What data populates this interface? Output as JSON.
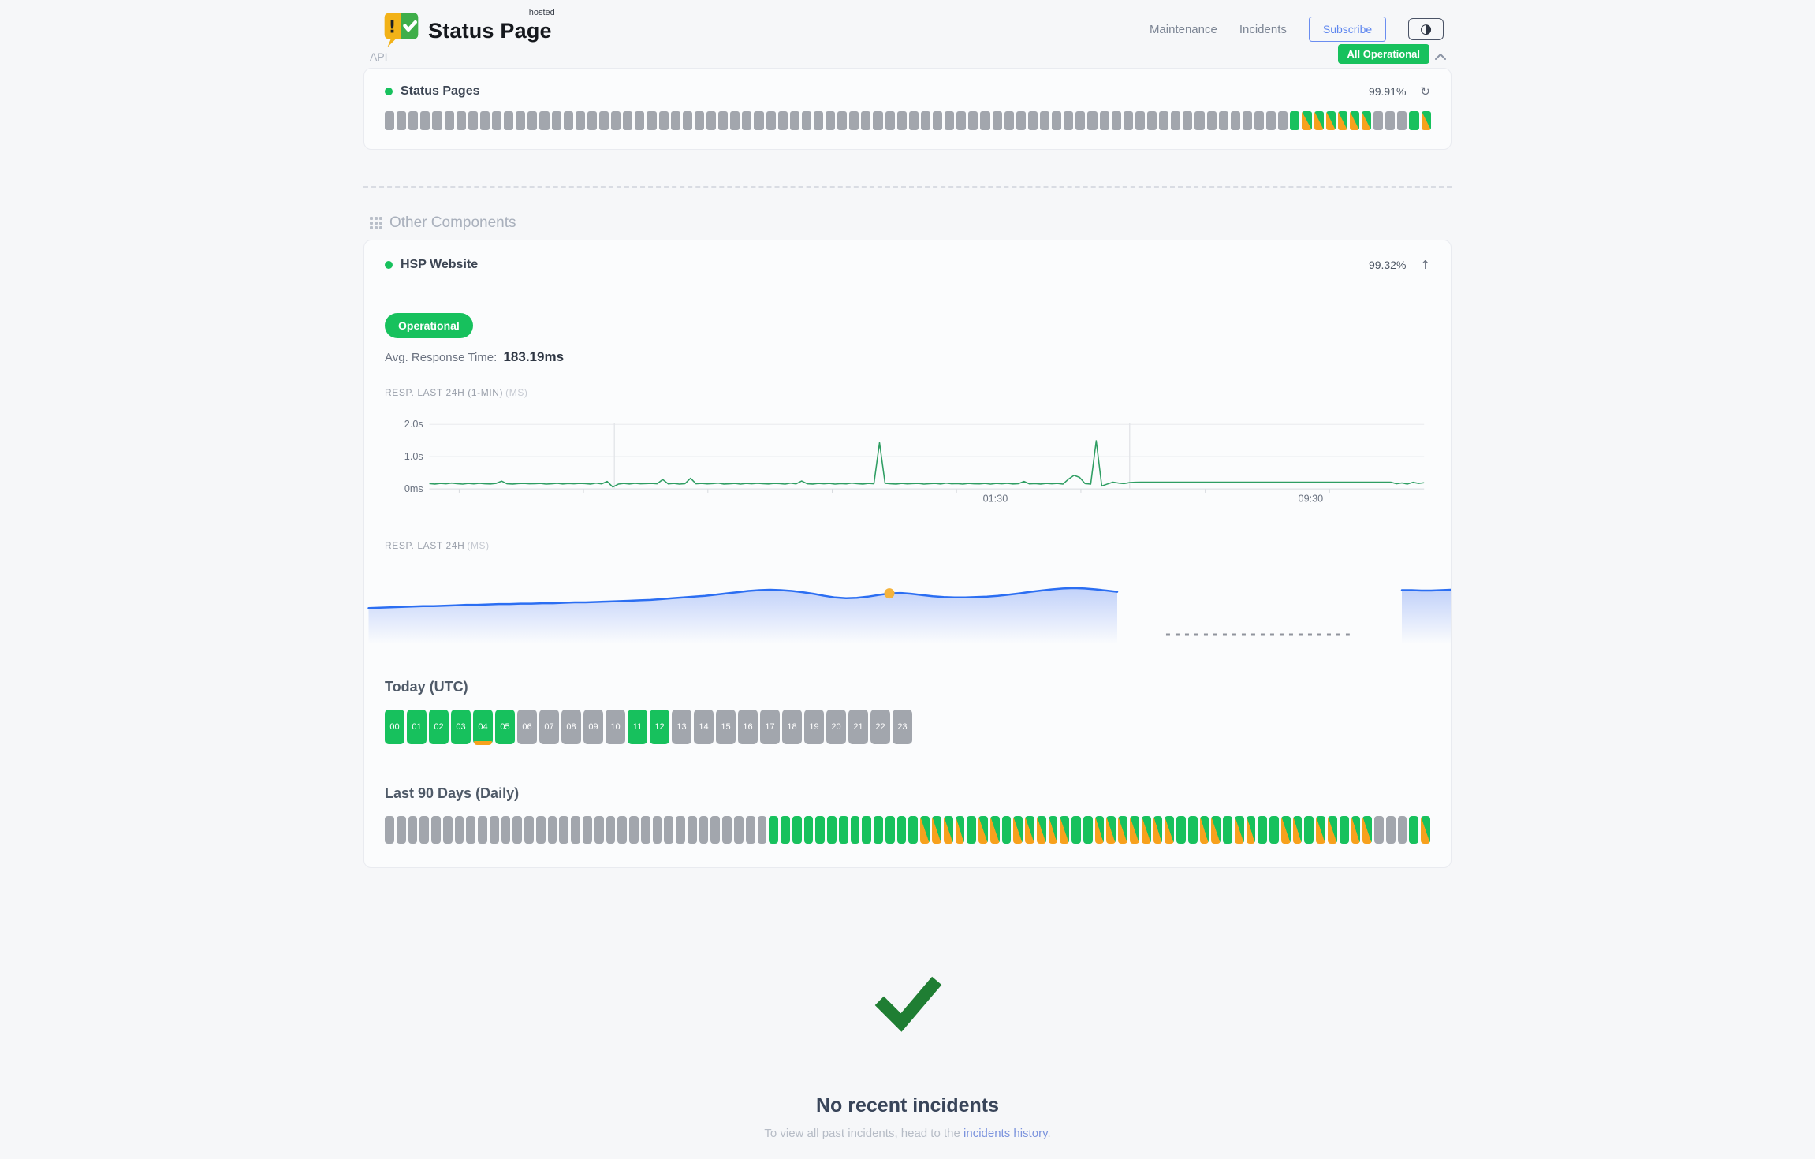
{
  "header": {
    "brand": {
      "name": "Status Page",
      "superscript": "hosted"
    },
    "nav": [
      {
        "label": "Maintenance"
      },
      {
        "label": "Incidents"
      }
    ],
    "subscribe_label": "Subscribe",
    "overall_status": "All Operational"
  },
  "icons": {
    "theme": "◑",
    "refresh": "↻",
    "trend_up": "↑"
  },
  "colors": {
    "green": "#17c15d",
    "orange": "#f7a11d",
    "gray": "#a2a6ad",
    "blue": "#2b6ef2",
    "chart_green": "#2f9e63",
    "marker_yellow": "#f4b33c"
  },
  "api_section": {
    "title": "API",
    "component": {
      "name": "Status Pages",
      "uptime": "99.91%"
    },
    "bars": "NNNNNNNNNNNNNNNNNNNNNNNNNNNNNNNNNNNNNNNNNNNNNNNNNNNNNNNNNNNNNNNNNNNNNNNNNNNNUDDDDDDNNNUD"
  },
  "other_section": {
    "title": "Other Components",
    "component": {
      "name": "HSP Website",
      "uptime": "99.32%",
      "status_label": "Operational",
      "avg_response_label": "Avg. Response Time:",
      "avg_response_value": "183.19ms"
    },
    "chart_minute": {
      "label": "RESP. LAST 24H (1-MIN)",
      "unit": "(MS)"
    },
    "chart_daily": {
      "label": "RESP. LAST 24H",
      "unit": "(MS)"
    },
    "today": {
      "title": "Today (UTC)",
      "hours": [
        {
          "label": "00",
          "status": "up"
        },
        {
          "label": "01",
          "status": "up"
        },
        {
          "label": "02",
          "status": "up"
        },
        {
          "label": "03",
          "status": "up"
        },
        {
          "label": "04",
          "status": "up",
          "marker": "degraded"
        },
        {
          "label": "05",
          "status": "up"
        },
        {
          "label": "06",
          "status": "empty"
        },
        {
          "label": "07",
          "status": "empty"
        },
        {
          "label": "08",
          "status": "empty"
        },
        {
          "label": "09",
          "status": "empty"
        },
        {
          "label": "10",
          "status": "empty"
        },
        {
          "label": "11",
          "status": "up"
        },
        {
          "label": "12",
          "status": "up"
        },
        {
          "label": "13",
          "status": "empty"
        },
        {
          "label": "14",
          "status": "empty"
        },
        {
          "label": "15",
          "status": "empty"
        },
        {
          "label": "16",
          "status": "empty"
        },
        {
          "label": "17",
          "status": "empty"
        },
        {
          "label": "18",
          "status": "empty"
        },
        {
          "label": "19",
          "status": "empty"
        },
        {
          "label": "20",
          "status": "empty"
        },
        {
          "label": "21",
          "status": "empty"
        },
        {
          "label": "22",
          "status": "empty"
        },
        {
          "label": "23",
          "status": "empty"
        }
      ]
    },
    "last90": {
      "title": "Last 90 Days (Daily)",
      "bars": "NNNNNNNNNNNNNNNNNNNNNNNNNNNNNNNNNUUUUUUUUUUUUUDDDDUDDUDDDDDUUDDDDDDDUUDDUDDUUDDUDDUDDNNNUD"
    }
  },
  "incidents": {
    "title": "No recent incidents",
    "subtext_prefix": "To view all past incidents, head to the ",
    "link_text": "incidents history",
    "subtext_suffix": "."
  },
  "chart_data": [
    {
      "type": "line",
      "title": "RESP. LAST 24H (1-MIN)",
      "unit": "MS",
      "color": "#2f9e63",
      "ylim": [
        0,
        2100
      ],
      "grid": true,
      "yticks": [
        {
          "label": "2.0s",
          "ms": 2000
        },
        {
          "label": "1.0s",
          "ms": 1000
        },
        {
          "label": "0ms",
          "ms": 0
        }
      ],
      "xticks": [
        {
          "pct": 56.9,
          "label": "01:30"
        },
        {
          "pct": 88.6,
          "label": "09:30"
        }
      ],
      "vlines_pct": [
        18.6,
        70.4
      ],
      "ticks_pct": [
        3,
        15.5,
        28,
        40.5,
        53,
        65.5,
        78,
        90.5
      ],
      "values": [
        165,
        150,
        172,
        158,
        180,
        162,
        148,
        170,
        155,
        175,
        160,
        152,
        168,
        240,
        158,
        150,
        165,
        172,
        156,
        162,
        170,
        148,
        160,
        175,
        152,
        166,
        158,
        172,
        164,
        150,
        178,
        155,
        230,
        60,
        148,
        168,
        152,
        175,
        158,
        165,
        172,
        160,
        290,
        155,
        168,
        148,
        162,
        330,
        158,
        170,
        155,
        165,
        178,
        150,
        160,
        172,
        148,
        168,
        158,
        175,
        162,
        152,
        170,
        165,
        148,
        178,
        155,
        245,
        160,
        150,
        168,
        158,
        172,
        148,
        165,
        155,
        178,
        162,
        150,
        170,
        160,
        1430,
        175,
        158,
        150,
        168,
        155,
        165,
        172,
        148,
        162,
        170,
        152,
        178,
        158,
        165,
        148,
        172,
        160,
        155,
        170,
        148,
        168,
        158,
        175,
        152,
        162,
        230,
        155,
        165,
        150,
        172,
        158,
        168,
        148,
        300,
        420,
        360,
        165,
        148,
        1490,
        90,
        150,
        210,
        180,
        165,
        195,
        205,
        210,
        210,
        210,
        210,
        210,
        210,
        210,
        210,
        210,
        210,
        210,
        210,
        210,
        210,
        210,
        210,
        210,
        210,
        210,
        210,
        210,
        210,
        210,
        210,
        210,
        210,
        210,
        210,
        210,
        210,
        210,
        210,
        210,
        210,
        210,
        210,
        210,
        210,
        210,
        210,
        210,
        210,
        210,
        210,
        210,
        210,
        160,
        185,
        150,
        205,
        170,
        190
      ]
    },
    {
      "type": "area",
      "title": "RESP. LAST 24H",
      "unit": "MS",
      "color": "#2b6ef2",
      "fill": "#3b6ef2",
      "marker": {
        "segment": 0,
        "index": 48,
        "color": "#f4b33c"
      },
      "segments": [
        {
          "type": "area",
          "from_pct": 0.4,
          "to_pct": 69.3,
          "values": [
            160,
            161,
            162,
            163,
            164,
            165,
            165,
            166,
            167,
            168,
            168,
            169,
            170,
            170,
            171,
            171,
            172,
            172,
            173,
            174,
            174,
            175,
            176,
            177,
            178,
            179,
            180,
            182,
            184,
            186,
            188,
            190,
            193,
            196,
            199,
            202,
            204,
            205,
            204,
            202,
            199,
            195,
            190,
            186,
            184,
            185,
            188,
            192,
            196,
            197,
            195,
            192,
            189,
            187,
            186,
            186,
            187,
            188,
            190,
            193,
            196,
            200,
            203,
            206,
            208,
            209,
            208,
            206,
            203,
            200
          ]
        },
        {
          "type": "dashed",
          "from_pct": 73.8,
          "to_pct": 90.7
        },
        {
          "type": "area",
          "from_pct": 95.5,
          "to_pct": 100,
          "values": [
            204,
            204,
            203,
            203,
            204,
            205
          ]
        }
      ]
    }
  ]
}
